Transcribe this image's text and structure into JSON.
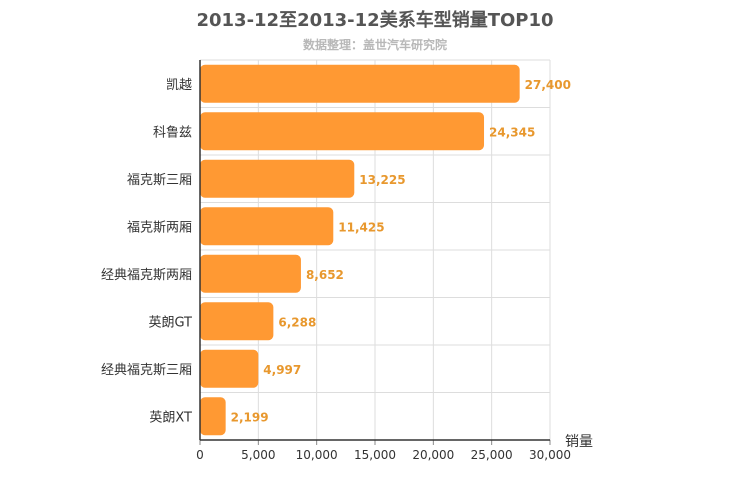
{
  "chart_data": {
    "type": "bar",
    "orientation": "horizontal",
    "title": "2013-12至2013-12美系车型销量TOP10",
    "subtitle": "数据整理：盖世汽车研究院",
    "xlabel": "销量",
    "ylabel": "",
    "xlim": [
      0,
      30000
    ],
    "x_ticks": [
      "0",
      "5,000",
      "10,000",
      "15,000",
      "20,000",
      "25,000",
      "30,000"
    ],
    "grid": true,
    "legend": "none",
    "categories": [
      "凯越",
      "科鲁兹",
      "福克斯三厢",
      "福克斯两厢",
      "经典福克斯两厢",
      "英朗GT",
      "经典福克斯三厢",
      "英朗XT"
    ],
    "values": [
      27400,
      24345,
      13225,
      11425,
      8652,
      6288,
      4997,
      2199
    ],
    "value_labels": [
      "27,400",
      "24,345",
      "13,225",
      "11,425",
      "8,652",
      "6,288",
      "4,997",
      "2,199"
    ],
    "bar_color": "#ff9933",
    "label_color": "#e8982e"
  }
}
